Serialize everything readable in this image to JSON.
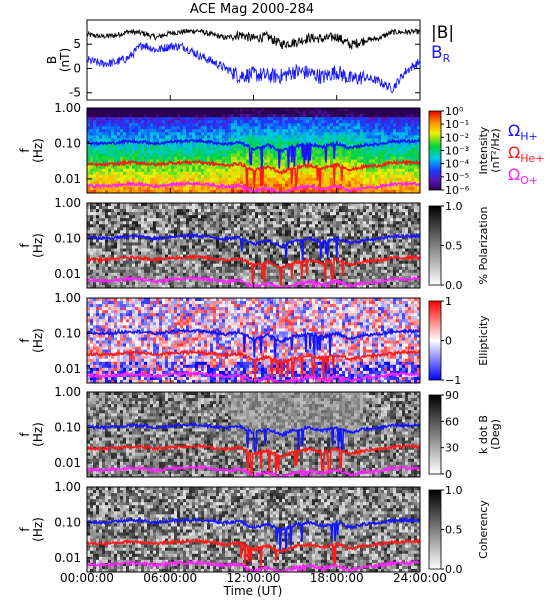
{
  "figure": {
    "title": "ACE Mag 2000-284",
    "time_ticks": [
      "00:00:00",
      "06:00:00",
      "12:00:00",
      "18:00:00",
      "24:00:00"
    ],
    "time_axis_label": "Time (UT)"
  },
  "colors": {
    "B_total": "#000000",
    "B_R": "#1a1aff",
    "gyro_H": "#1515ff",
    "gyro_He": "#ff1a1a",
    "gyro_O": "#ff22ff"
  },
  "legend": {
    "B_total_label": "|B|",
    "B_R_label": "B",
    "B_R_sub": "R",
    "omega_H_label": "Ω",
    "omega_H_sub": "H+",
    "omega_He_label": "Ω",
    "omega_He_sub": "He+",
    "omega_O_label": "Ω",
    "omega_O_sub": "O+"
  },
  "chart_data": [
    {
      "type": "line",
      "name": "magnetic-field",
      "ylabel": "B",
      "ylabel_unit": "(nT)",
      "xlim": [
        0,
        24
      ],
      "ylim": [
        -6.5,
        10
      ],
      "yticks": [
        "5",
        "0",
        "-5"
      ],
      "ytick_values": [
        5,
        0,
        -5
      ],
      "series": [
        {
          "name": "|B|",
          "x": [
            0,
            1,
            2,
            3,
            4,
            5,
            6,
            7,
            8,
            9,
            10,
            11,
            12,
            13,
            14,
            15,
            16,
            17,
            18,
            19,
            20,
            21,
            22,
            23,
            24
          ],
          "values": [
            7.0,
            6.6,
            6.8,
            7.6,
            7.3,
            6.4,
            7.3,
            7.6,
            7.8,
            7.0,
            6.3,
            7.0,
            6.2,
            6.6,
            5.0,
            5.4,
            6.3,
            6.1,
            6.6,
            4.8,
            5.8,
            6.2,
            7.5,
            7.5,
            7.6
          ]
        },
        {
          "name": "B_R",
          "x": [
            0,
            1,
            2,
            3,
            4,
            5,
            6,
            7,
            8,
            9,
            10,
            11,
            12,
            13,
            14,
            15,
            16,
            17,
            18,
            19,
            20,
            21,
            22,
            23,
            24
          ],
          "values": [
            1.8,
            1.0,
            1.2,
            2.2,
            5.0,
            3.8,
            4.6,
            4.5,
            2.8,
            1.5,
            0.0,
            -1.5,
            -1.2,
            -1.5,
            -1.6,
            -0.6,
            -0.9,
            -1.8,
            -0.6,
            -2.2,
            -1.8,
            -2.6,
            -4.2,
            -0.5,
            1.4
          ]
        }
      ]
    },
    {
      "type": "heatmap",
      "name": "intensity",
      "ylabel": "f",
      "ylabel_unit": "(Hz)",
      "yscale": "log",
      "ylim": [
        0.004,
        1.0
      ],
      "yticks": [
        "1.00",
        "0.10",
        "0.01"
      ],
      "colorbar_label": "Intensity",
      "colorbar_unit": "(nT²/Hz)",
      "colorbar_ticks": [
        "10⁰",
        "10⁻¹",
        "10⁻²",
        "10⁻³",
        "10⁻⁴",
        "10⁻⁵",
        "10⁻⁶"
      ],
      "colorbar_scale": "rainbow",
      "overlays": [
        "Ω_H+",
        "Ω_He+",
        "Ω_O+"
      ]
    },
    {
      "type": "heatmap",
      "name": "polarization",
      "ylabel": "f",
      "ylabel_unit": "(Hz)",
      "yscale": "log",
      "ylim": [
        0.004,
        1.0
      ],
      "yticks": [
        "1.00",
        "0.10",
        "0.01"
      ],
      "colorbar_label": "% Polarization",
      "colorbar_ticks": [
        "1.0",
        "0.5",
        "0.0"
      ],
      "colorbar_scale": "grayscale"
    },
    {
      "type": "heatmap",
      "name": "ellipticity",
      "ylabel": "f",
      "ylabel_unit": "(Hz)",
      "yscale": "log",
      "ylim": [
        0.004,
        1.0
      ],
      "yticks": [
        "1.00",
        "0.10",
        "0.01"
      ],
      "colorbar_label": "Ellipticity",
      "colorbar_ticks": [
        "1",
        "0",
        "−1"
      ],
      "colorbar_scale": "blue-white-red"
    },
    {
      "type": "heatmap",
      "name": "k-dot-b",
      "ylabel": "f",
      "ylabel_unit": "(Hz)",
      "yscale": "log",
      "ylim": [
        0.004,
        1.0
      ],
      "yticks": [
        "1.00",
        "0.10",
        "0.01"
      ],
      "colorbar_label": "k dot B",
      "colorbar_unit": "(Deg)",
      "colorbar_ticks": [
        "90",
        "60",
        "30",
        "0"
      ],
      "colorbar_scale": "grayscale"
    },
    {
      "type": "heatmap",
      "name": "coherency",
      "ylabel": "f",
      "ylabel_unit": "(Hz)",
      "yscale": "log",
      "ylim": [
        0.004,
        1.0
      ],
      "yticks": [
        "1.00",
        "0.10",
        "0.01"
      ],
      "colorbar_label": "Coherency",
      "colorbar_ticks": [
        "1.0",
        "0.5",
        "0.0"
      ],
      "colorbar_scale": "grayscale"
    }
  ],
  "gyrofrequency": {
    "x": [
      0,
      1,
      2,
      3,
      4,
      5,
      6,
      7,
      8,
      9,
      10,
      11,
      12,
      13,
      14,
      15,
      16,
      17,
      18,
      19,
      20,
      21,
      22,
      23,
      24
    ],
    "H_plus_hz": [
      0.105,
      0.1,
      0.103,
      0.115,
      0.112,
      0.098,
      0.112,
      0.117,
      0.12,
      0.108,
      0.096,
      0.107,
      0.068,
      0.09,
      0.06,
      0.085,
      0.098,
      0.08,
      0.1,
      0.072,
      0.09,
      0.095,
      0.114,
      0.115,
      0.116
    ],
    "He_plus_hz": [
      0.026,
      0.025,
      0.026,
      0.029,
      0.028,
      0.025,
      0.028,
      0.029,
      0.03,
      0.027,
      0.024,
      0.027,
      0.017,
      0.022,
      0.015,
      0.021,
      0.024,
      0.02,
      0.025,
      0.018,
      0.022,
      0.024,
      0.028,
      0.029,
      0.029
    ],
    "O_plus_hz": [
      0.0066,
      0.0063,
      0.0065,
      0.0072,
      0.007,
      0.0061,
      0.007,
      0.0073,
      0.0075,
      0.0068,
      0.006,
      0.0067,
      0.0043,
      0.0056,
      0.0038,
      0.0053,
      0.0061,
      0.005,
      0.0063,
      0.0045,
      0.0056,
      0.0059,
      0.0071,
      0.0072,
      0.0073
    ]
  }
}
